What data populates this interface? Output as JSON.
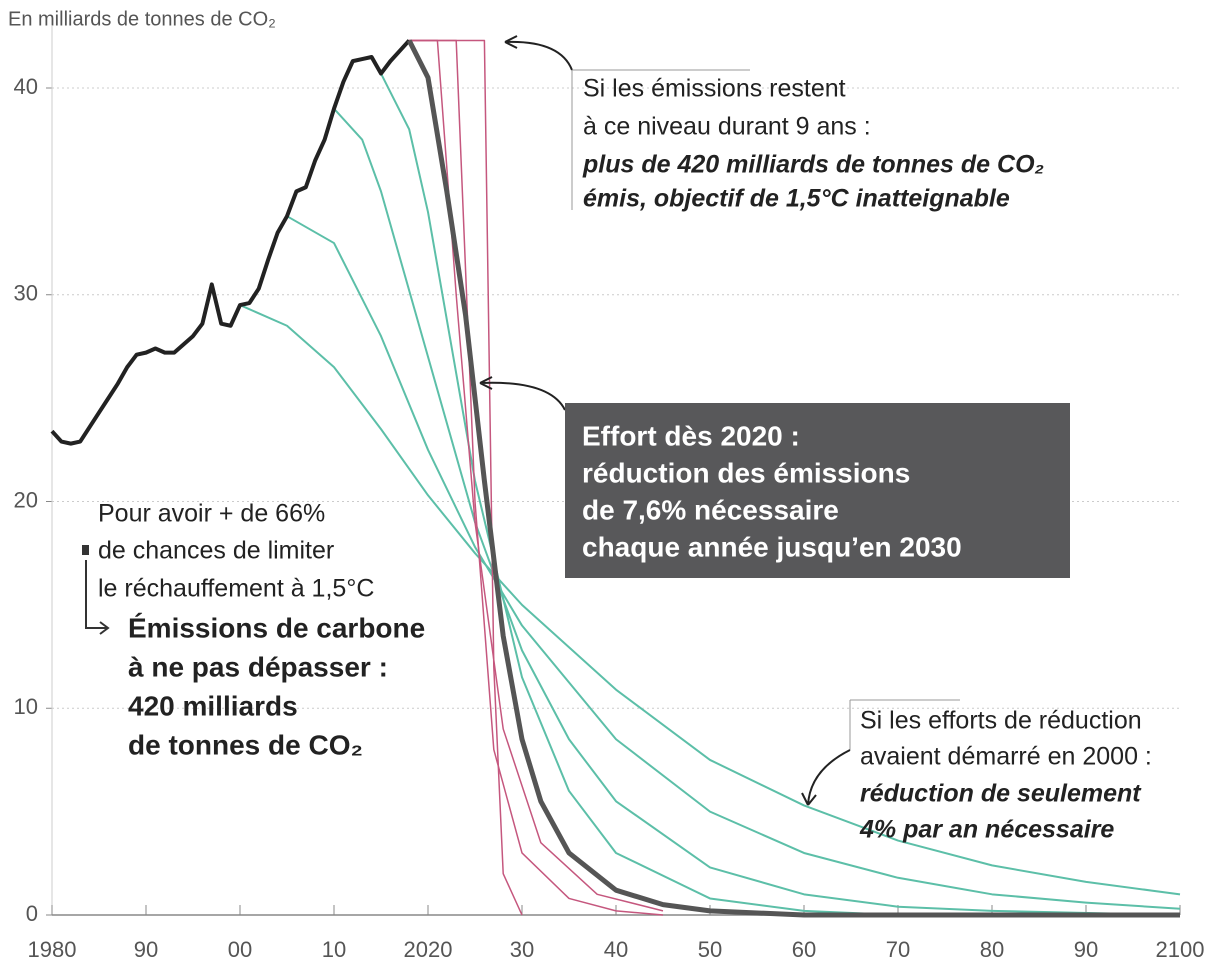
{
  "chart_data": {
    "type": "line",
    "ylabel": "En milliards de tonnes de CO₂",
    "xlim": [
      1980,
      2100
    ],
    "ylim": [
      0,
      43
    ],
    "yticks": [
      0,
      10,
      20,
      30,
      40
    ],
    "xticks": [
      1980,
      {
        "value": 1990,
        "label": "90"
      },
      {
        "value": 2000,
        "label": "00"
      },
      {
        "value": 2010,
        "label": "10"
      },
      2020,
      {
        "value": 2030,
        "label": "30"
      },
      {
        "value": 2040,
        "label": "40"
      },
      {
        "value": 2050,
        "label": "50"
      },
      {
        "value": 2060,
        "label": "60"
      },
      {
        "value": 2070,
        "label": "70"
      },
      {
        "value": 2080,
        "label": "80"
      },
      {
        "value": 2090,
        "label": "90"
      },
      2100
    ],
    "grid": true,
    "series": [
      {
        "color": "#5cbfa8",
        "width": 2,
        "x": [
          2000,
          2005,
          2010,
          2015,
          2020,
          2025,
          2030,
          2040,
          2050,
          2060,
          2070,
          2080,
          2090,
          2100
        ],
        "values": [
          29.5,
          28.5,
          26.5,
          23.5,
          20.3,
          17.5,
          15,
          10.9,
          7.5,
          5.3,
          3.6,
          2.4,
          1.6,
          1.0
        ]
      },
      {
        "color": "#5cbfa8",
        "width": 2,
        "x": [
          2005,
          2010,
          2015,
          2020,
          2025,
          2030,
          2040,
          2050,
          2060,
          2070,
          2080,
          2090,
          2100
        ],
        "values": [
          33.8,
          32.5,
          28,
          22.5,
          17.8,
          14,
          8.5,
          5,
          3,
          1.8,
          1,
          0.6,
          0.3
        ]
      },
      {
        "color": "#5cbfa8",
        "width": 2,
        "x": [
          2010,
          2013,
          2015,
          2020,
          2025,
          2030,
          2035,
          2040,
          2050,
          2060,
          2070,
          2080,
          2100
        ],
        "values": [
          39.0,
          37.5,
          35,
          27,
          19,
          12.8,
          8.5,
          5.5,
          2.3,
          1,
          0.4,
          0.2,
          0
        ]
      },
      {
        "color": "#5cbfa8",
        "width": 2,
        "x": [
          2015,
          2018,
          2020,
          2025,
          2030,
          2035,
          2040,
          2050,
          2060,
          2070
        ],
        "values": [
          40.7,
          38,
          34,
          21,
          11.5,
          6,
          3,
          0.8,
          0.2,
          0
        ]
      },
      {
        "color": "#c5577e",
        "width": 1.5,
        "x": [
          2018,
          2026,
          2027,
          2028,
          2030
        ],
        "values": [
          42.3,
          42.3,
          12,
          2,
          0
        ]
      },
      {
        "color": "#c5577e",
        "width": 1.5,
        "x": [
          2018,
          2023,
          2025,
          2027,
          2030,
          2035,
          2040,
          2045
        ],
        "values": [
          42.3,
          42.3,
          20,
          8,
          3,
          0.8,
          0.2,
          0
        ]
      },
      {
        "color": "#c5577e",
        "width": 1.5,
        "x": [
          2018,
          2021,
          2023,
          2025,
          2028,
          2032,
          2038,
          2045
        ],
        "values": [
          42.3,
          42.3,
          30,
          19,
          9,
          3.5,
          1,
          0.2
        ]
      },
      {
        "color": "#222222",
        "width": 4,
        "x": [
          1980,
          1981,
          1982,
          1983,
          1984,
          1985,
          1986,
          1987,
          1988,
          1989,
          1990,
          1991,
          1992,
          1993,
          1994,
          1995,
          1996,
          1997,
          1998,
          1999,
          2000,
          2001,
          2002,
          2003,
          2004,
          2005,
          2006,
          2007,
          2008,
          2009,
          2010,
          2011,
          2012,
          2013,
          2014,
          2015,
          2016,
          2017,
          2018
        ],
        "values": [
          23.4,
          22.9,
          22.8,
          22.9,
          23.6,
          24.3,
          25.0,
          25.7,
          26.5,
          27.1,
          27.2,
          27.4,
          27.2,
          27.2,
          27.6,
          28.0,
          28.6,
          30.5,
          28.6,
          28.5,
          29.5,
          29.6,
          30.3,
          31.7,
          33.0,
          33.8,
          35.0,
          35.2,
          36.5,
          37.5,
          39.0,
          40.3,
          41.3,
          41.4,
          41.5,
          40.7,
          41.3,
          41.8,
          42.3
        ]
      },
      {
        "color": "#555555",
        "width": 5,
        "x": [
          2018,
          2020,
          2022,
          2024,
          2026,
          2028,
          2030,
          2032,
          2035,
          2040,
          2045,
          2050,
          2060,
          2100
        ],
        "values": [
          42.3,
          40.5,
          35,
          29,
          21,
          13.5,
          8.5,
          5.5,
          3,
          1.2,
          0.5,
          0.2,
          0,
          0
        ]
      }
    ],
    "annotations": {
      "top": [
        "Si les émissions restent",
        "à ce niveau durant 9 ans :",
        "plus de 420 milliards de tonnes de CO₂",
        "émis, objectif de 1,5°C inatteignable"
      ],
      "box": [
        "Effort dès 2020 :",
        "réduction des émissions",
        "de 7,6% nécessaire",
        "chaque année jusqu’en 2030"
      ],
      "left": [
        "Pour avoir + de 66%",
        "de chances de limiter",
        "le réchauffement à 1,5°C"
      ],
      "left_bold": [
        "Émissions de carbone",
        "à ne pas dépasser :",
        "420 milliards",
        "de tonnes de CO₂"
      ],
      "right": [
        "Si les efforts de réduction",
        "avaient démarré en 2000 :",
        "réduction de seulement",
        "4% par an nécessaire"
      ]
    }
  }
}
